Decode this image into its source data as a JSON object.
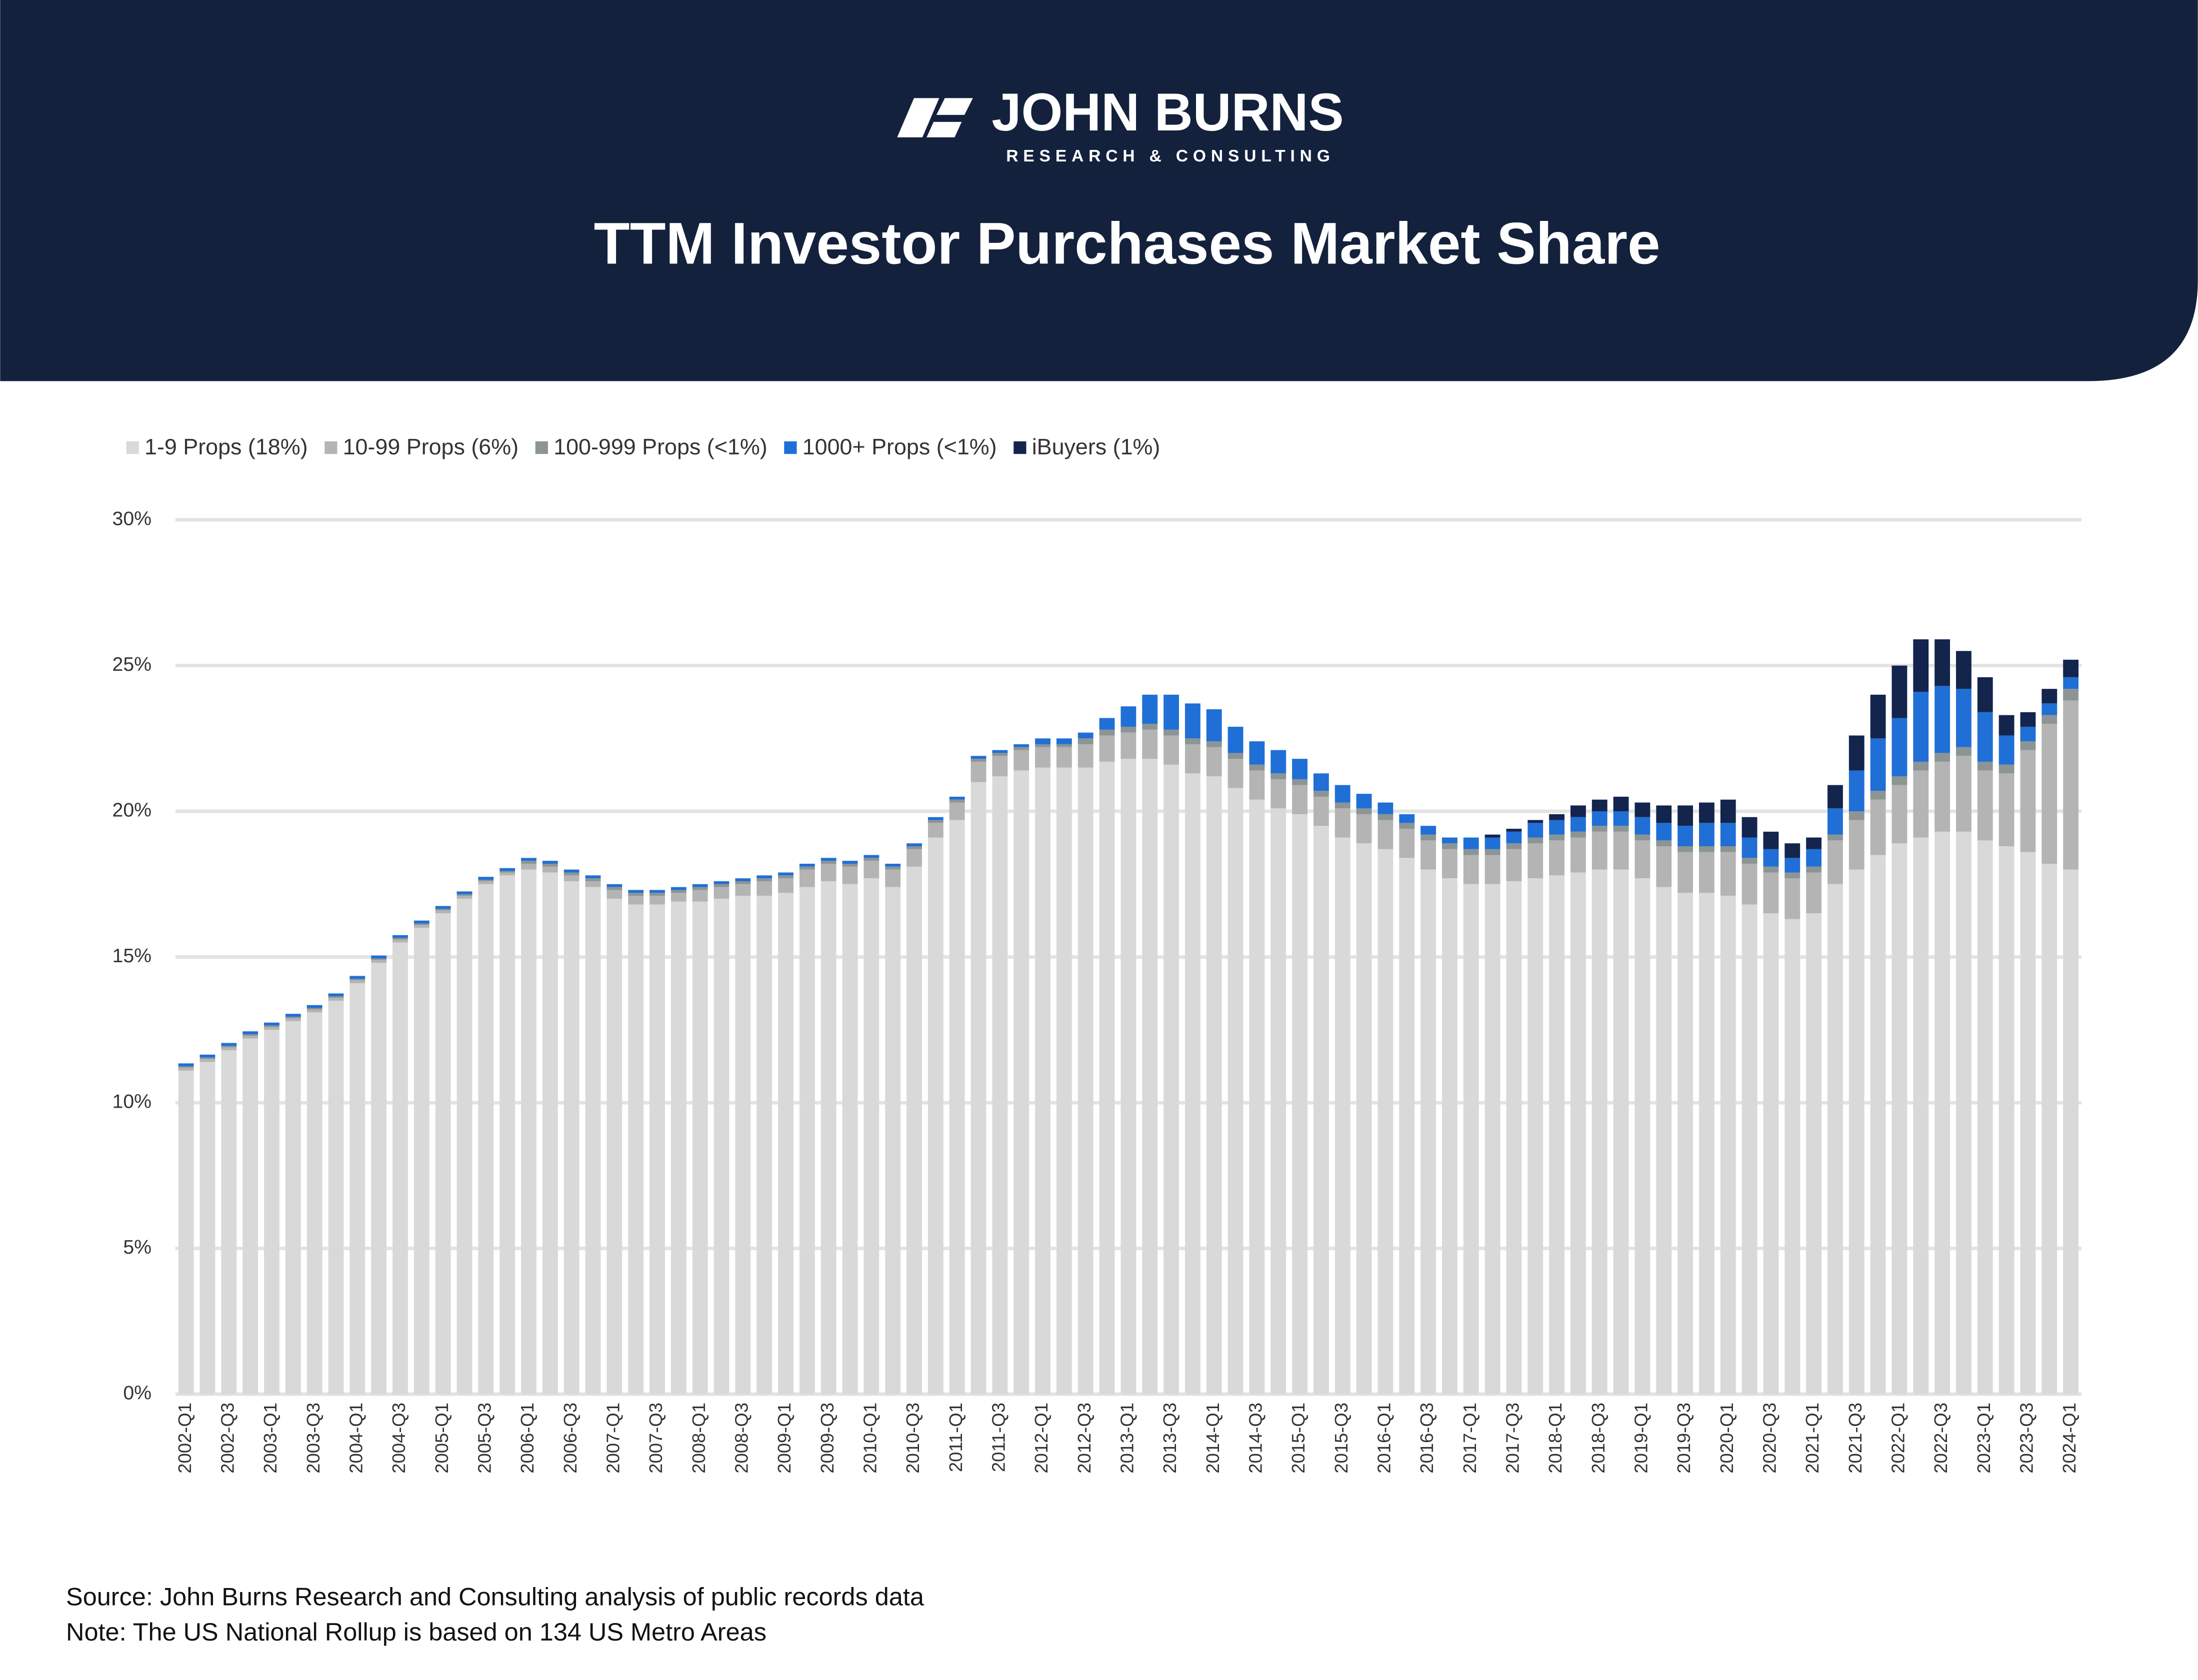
{
  "header": {
    "brand": "JOHN BURNS",
    "tagline": "RESEARCH & CONSULTING"
  },
  "footer": {
    "source": "Source: John Burns Research and Consulting analysis of public records data",
    "note": "Note: The US National Rollup is based on 134 US Metro Areas"
  },
  "chart_data": {
    "type": "stacked_bar",
    "title": "TTM Investor Purchases Market Share",
    "categories": [
      "2002-Q1",
      null,
      "2002-Q3",
      null,
      "2003-Q1",
      null,
      "2003-Q3",
      null,
      "2004-Q1",
      null,
      "2004-Q3",
      null,
      "2005-Q1",
      null,
      "2005-Q3",
      null,
      "2006-Q1",
      null,
      "2006-Q3",
      null,
      "2007-Q1",
      null,
      "2007-Q3",
      null,
      "2008-Q1",
      null,
      "2008-Q3",
      null,
      "2009-Q1",
      null,
      "2009-Q3",
      null,
      "2010-Q1",
      null,
      "2010-Q3",
      null,
      "2011-Q1",
      null,
      "2011-Q3",
      null,
      "2012-Q1",
      null,
      "2012-Q3",
      null,
      "2013-Q1",
      null,
      "2013-Q3",
      null,
      "2014-Q1",
      null,
      "2014-Q3",
      null,
      "2015-Q1",
      null,
      "2015-Q3",
      null,
      "2016-Q1",
      null,
      "2016-Q3",
      null,
      "2017-Q1",
      null,
      "2017-Q3",
      null,
      "2018-Q1",
      null,
      "2018-Q3",
      null,
      "2019-Q1",
      null,
      "2019-Q3",
      null,
      "2020-Q1",
      null,
      "2020-Q3",
      null,
      "2021-Q1",
      null,
      "2021-Q3",
      null,
      "2022-Q1",
      null,
      "2022-Q3",
      null,
      "2023-Q1",
      null,
      "2023-Q3",
      null,
      "2024-Q1"
    ],
    "ylim": [
      0,
      30
    ],
    "yticks": [
      {
        "value": 0,
        "label": "0%"
      },
      {
        "value": 5,
        "label": "5%"
      },
      {
        "value": 10,
        "label": "10%"
      },
      {
        "value": 15,
        "label": "15%"
      },
      {
        "value": 20,
        "label": "20%"
      },
      {
        "value": 25,
        "label": "25%"
      },
      {
        "value": 30,
        "label": "30%"
      }
    ],
    "grid": true,
    "legend": "top-left",
    "series": [
      {
        "name": "1-9 Props (18%)",
        "color": "#d9d9d9",
        "values": [
          11.1,
          11.4,
          11.8,
          12.2,
          12.5,
          12.8,
          13.1,
          13.5,
          14.1,
          14.8,
          15.5,
          16.0,
          16.5,
          17.0,
          17.5,
          17.8,
          18.0,
          17.9,
          17.6,
          17.4,
          17.0,
          16.8,
          16.8,
          16.9,
          16.9,
          17.0,
          17.1,
          17.1,
          17.2,
          17.4,
          17.6,
          17.5,
          17.7,
          17.4,
          18.1,
          19.1,
          19.7,
          21.0,
          21.2,
          21.4,
          21.5,
          21.5,
          21.5,
          21.7,
          21.8,
          21.8,
          21.6,
          21.3,
          21.2,
          20.8,
          20.4,
          20.1,
          19.9,
          19.5,
          19.1,
          18.9,
          18.7,
          18.4,
          18.0,
          17.7,
          17.5,
          17.5,
          17.6,
          17.7,
          17.8,
          17.9,
          18.0,
          18.0,
          17.7,
          17.4,
          17.2,
          17.2,
          17.1,
          16.8,
          16.5,
          16.3,
          16.5,
          17.5,
          18.0,
          18.5,
          18.9,
          19.1,
          19.3,
          19.3,
          19.0,
          18.8,
          18.6,
          18.2,
          18.0
        ]
      },
      {
        "name": "10-99 Props (6%)",
        "color": "#b4b4b4",
        "values": [
          0.1,
          0.1,
          0.1,
          0.1,
          0.1,
          0.1,
          0.1,
          0.1,
          0.1,
          0.1,
          0.1,
          0.1,
          0.1,
          0.1,
          0.1,
          0.1,
          0.2,
          0.2,
          0.2,
          0.2,
          0.3,
          0.3,
          0.3,
          0.3,
          0.4,
          0.4,
          0.4,
          0.5,
          0.5,
          0.6,
          0.6,
          0.6,
          0.6,
          0.6,
          0.6,
          0.5,
          0.6,
          0.7,
          0.7,
          0.7,
          0.7,
          0.7,
          0.8,
          0.9,
          0.9,
          1.0,
          1.0,
          1.0,
          1.0,
          1.0,
          1.0,
          1.0,
          1.0,
          1.0,
          1.0,
          1.0,
          1.0,
          1.0,
          1.0,
          1.0,
          1.0,
          1.0,
          1.1,
          1.2,
          1.2,
          1.2,
          1.3,
          1.3,
          1.3,
          1.4,
          1.4,
          1.4,
          1.5,
          1.4,
          1.4,
          1.4,
          1.4,
          1.5,
          1.7,
          1.9,
          2.0,
          2.3,
          2.4,
          2.6,
          2.4,
          2.5,
          3.5,
          4.8,
          5.8
        ]
      },
      {
        "name": "100-999 Props (<1%)",
        "color": "#8c9494",
        "values": [
          0.05,
          0.05,
          0.05,
          0.05,
          0.05,
          0.05,
          0.05,
          0.05,
          0.05,
          0.05,
          0.05,
          0.05,
          0.05,
          0.05,
          0.05,
          0.05,
          0.1,
          0.1,
          0.1,
          0.1,
          0.1,
          0.1,
          0.1,
          0.1,
          0.1,
          0.1,
          0.1,
          0.1,
          0.1,
          0.1,
          0.1,
          0.1,
          0.1,
          0.1,
          0.1,
          0.1,
          0.1,
          0.1,
          0.1,
          0.1,
          0.1,
          0.1,
          0.2,
          0.2,
          0.2,
          0.2,
          0.2,
          0.2,
          0.2,
          0.2,
          0.2,
          0.2,
          0.2,
          0.2,
          0.2,
          0.2,
          0.2,
          0.2,
          0.2,
          0.2,
          0.2,
          0.2,
          0.2,
          0.2,
          0.2,
          0.2,
          0.2,
          0.2,
          0.2,
          0.2,
          0.2,
          0.2,
          0.2,
          0.2,
          0.2,
          0.2,
          0.2,
          0.2,
          0.3,
          0.3,
          0.3,
          0.3,
          0.3,
          0.3,
          0.3,
          0.3,
          0.3,
          0.3,
          0.4
        ]
      },
      {
        "name": "1000+ Props (<1%)",
        "color": "#1f6fd6",
        "values": [
          0.1,
          0.1,
          0.1,
          0.1,
          0.1,
          0.1,
          0.1,
          0.1,
          0.1,
          0.1,
          0.1,
          0.1,
          0.1,
          0.1,
          0.1,
          0.1,
          0.1,
          0.1,
          0.1,
          0.1,
          0.1,
          0.1,
          0.1,
          0.1,
          0.1,
          0.1,
          0.1,
          0.1,
          0.1,
          0.1,
          0.1,
          0.1,
          0.1,
          0.1,
          0.1,
          0.1,
          0.1,
          0.1,
          0.1,
          0.1,
          0.2,
          0.2,
          0.2,
          0.4,
          0.7,
          1.0,
          1.2,
          1.2,
          1.1,
          0.9,
          0.8,
          0.8,
          0.7,
          0.6,
          0.6,
          0.5,
          0.4,
          0.3,
          0.3,
          0.2,
          0.4,
          0.4,
          0.4,
          0.5,
          0.5,
          0.5,
          0.5,
          0.5,
          0.6,
          0.6,
          0.7,
          0.8,
          0.8,
          0.7,
          0.6,
          0.5,
          0.6,
          0.9,
          1.4,
          1.8,
          2.0,
          2.4,
          2.3,
          2.0,
          1.7,
          1.0,
          0.5,
          0.4,
          0.4
        ]
      },
      {
        "name": "iBuyers (1%)",
        "color": "#13254d",
        "values": [
          0,
          0,
          0,
          0,
          0,
          0,
          0,
          0,
          0,
          0,
          0,
          0,
          0,
          0,
          0,
          0,
          0,
          0,
          0,
          0,
          0,
          0,
          0,
          0,
          0,
          0,
          0,
          0,
          0,
          0,
          0,
          0,
          0,
          0,
          0,
          0,
          0,
          0,
          0,
          0,
          0,
          0,
          0,
          0,
          0,
          0,
          0,
          0,
          0,
          0,
          0,
          0,
          0,
          0,
          0,
          0,
          0,
          0,
          0,
          0,
          0,
          0.1,
          0.1,
          0.1,
          0.2,
          0.4,
          0.4,
          0.5,
          0.5,
          0.6,
          0.7,
          0.7,
          0.8,
          0.7,
          0.6,
          0.5,
          0.4,
          0.8,
          1.2,
          1.5,
          1.8,
          1.8,
          1.6,
          1.3,
          1.2,
          0.7,
          0.5,
          0.5,
          0.6
        ]
      }
    ]
  }
}
